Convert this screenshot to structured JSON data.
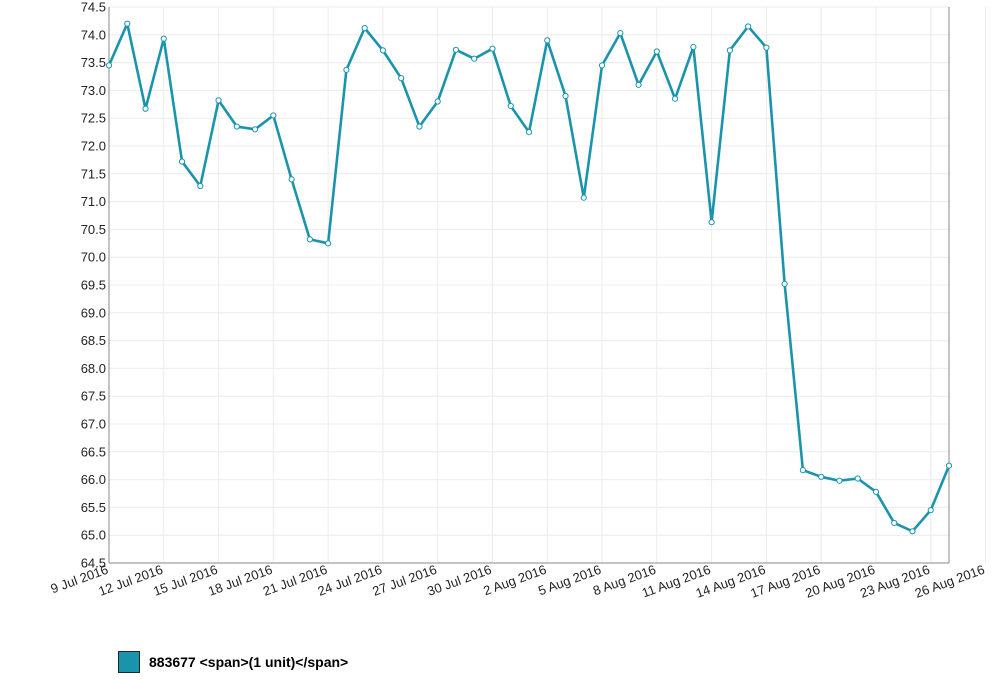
{
  "chart_data": {
    "type": "line",
    "title": "",
    "xlabel": "",
    "ylabel": "",
    "ylim": [
      64.5,
      74.5
    ],
    "yticks": [
      "64.5",
      "65.0",
      "65.5",
      "66.0",
      "66.5",
      "67.0",
      "67.5",
      "68.0",
      "68.5",
      "69.0",
      "69.5",
      "70.0",
      "70.5",
      "71.0",
      "71.5",
      "72.0",
      "72.5",
      "73.0",
      "73.5",
      "74.0",
      "74.5"
    ],
    "xticks": [
      "9 Jul 2016",
      "12 Jul 2016",
      "15 Jul 2016",
      "18 Jul 2016",
      "21 Jul 2016",
      "24 Jul 2016",
      "27 Jul 2016",
      "30 Jul 2016",
      "2 Aug 2016",
      "5 Aug 2016",
      "8 Aug 2016",
      "11 Aug 2016",
      "14 Aug 2016",
      "17 Aug 2016",
      "20 Aug 2016",
      "23 Aug 2016",
      "26 Aug 2016"
    ],
    "x": [
      "9 Jul 2016",
      "10 Jul 2016",
      "11 Jul 2016",
      "12 Jul 2016",
      "13 Jul 2016",
      "14 Jul 2016",
      "15 Jul 2016",
      "16 Jul 2016",
      "17 Jul 2016",
      "18 Jul 2016",
      "19 Jul 2016",
      "20 Jul 2016",
      "21 Jul 2016",
      "22 Jul 2016",
      "23 Jul 2016",
      "24 Jul 2016",
      "25 Jul 2016",
      "26 Jul 2016",
      "27 Jul 2016",
      "28 Jul 2016",
      "29 Jul 2016",
      "30 Jul 2016",
      "31 Jul 2016",
      "1 Aug 2016",
      "2 Aug 2016",
      "3 Aug 2016",
      "4 Aug 2016",
      "5 Aug 2016",
      "6 Aug 2016",
      "7 Aug 2016",
      "8 Aug 2016",
      "9 Aug 2016",
      "10 Aug 2016",
      "11 Aug 2016",
      "12 Aug 2016",
      "13 Aug 2016",
      "14 Aug 2016",
      "15 Aug 2016",
      "16 Aug 2016",
      "17 Aug 2016",
      "18 Aug 2016",
      "19 Aug 2016",
      "20 Aug 2016",
      "21 Aug 2016",
      "22 Aug 2016",
      "23 Aug 2016",
      "24 Aug 2016"
    ],
    "grid": true,
    "legend_position": "bottom-left",
    "series": [
      {
        "name": "883677 <span>(1 unit)</span>",
        "color": "#1a94ac",
        "values": [
          73.45,
          74.2,
          72.67,
          73.93,
          71.72,
          71.28,
          72.82,
          72.35,
          72.3,
          72.55,
          71.4,
          70.32,
          70.25,
          73.37,
          74.12,
          73.72,
          73.22,
          72.35,
          72.8,
          73.73,
          73.57,
          73.75,
          72.72,
          72.25,
          73.9,
          72.9,
          71.07,
          73.45,
          74.03,
          73.1,
          73.7,
          72.85,
          73.78,
          70.63,
          73.72,
          74.15,
          73.77,
          69.52,
          66.17,
          66.05,
          65.98,
          66.02,
          65.78,
          65.22,
          65.07,
          65.45,
          66.25
        ]
      }
    ]
  }
}
